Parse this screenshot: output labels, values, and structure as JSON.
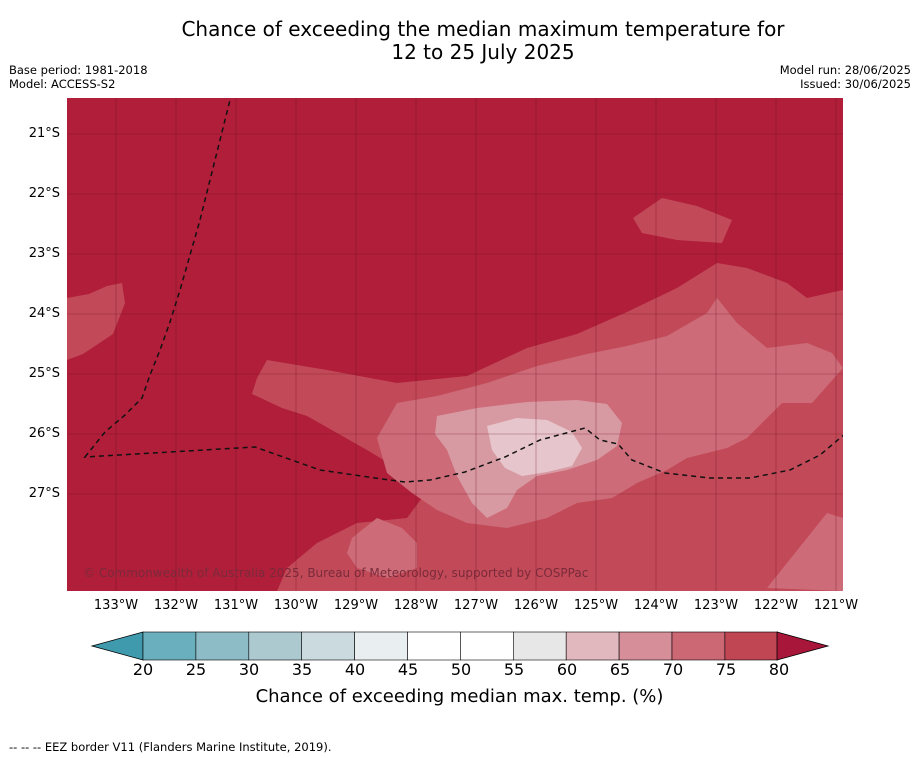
{
  "title": {
    "line1": "Chance of exceeding the median maximum temperature for",
    "line2": "12 to 25 July 2025"
  },
  "meta_left": {
    "line1": "Base period: 1981-2018",
    "line2": "Model: ACCESS-S2"
  },
  "meta_right": {
    "line1": "Model run: 28/06/2025",
    "line2": "Issued: 30/06/2025"
  },
  "map": {
    "lat_labels": [
      "21°S",
      "22°S",
      "23°S",
      "24°S",
      "25°S",
      "26°S",
      "27°S"
    ],
    "lon_labels": [
      "133°W",
      "132°W",
      "131°W",
      "130°W",
      "129°W",
      "128°W",
      "127°W",
      "126°W",
      "125°W",
      "124°W",
      "123°W",
      "122°W",
      "121°W"
    ],
    "copyright": "© Commonwealth of Australia 2025, Bureau of Meteorology, supported by COSPPac",
    "background_color": "#b01e3a",
    "shading_colors": [
      "#c24a58",
      "#cd6b78",
      "#d89aa2",
      "#e6c6cc"
    ]
  },
  "colorbar": {
    "ticks": [
      "20",
      "25",
      "30",
      "35",
      "40",
      "45",
      "50",
      "55",
      "60",
      "65",
      "70",
      "75",
      "80"
    ],
    "colors": [
      "#3e9aac",
      "#6aafbe",
      "#8dbbc6",
      "#abc9cf",
      "#cbdadf",
      "#e9eff1",
      "#ffffff",
      "#ffffff",
      "#e7e7e7",
      "#e1b8be",
      "#d68f98",
      "#cb6874",
      "#c04654",
      "#a8163a"
    ],
    "label": "Chance of exceeding median max. temp. (%)"
  },
  "footnote": "-- -- -- EEZ border V11 (Flanders Marine Institute, 2019)."
}
